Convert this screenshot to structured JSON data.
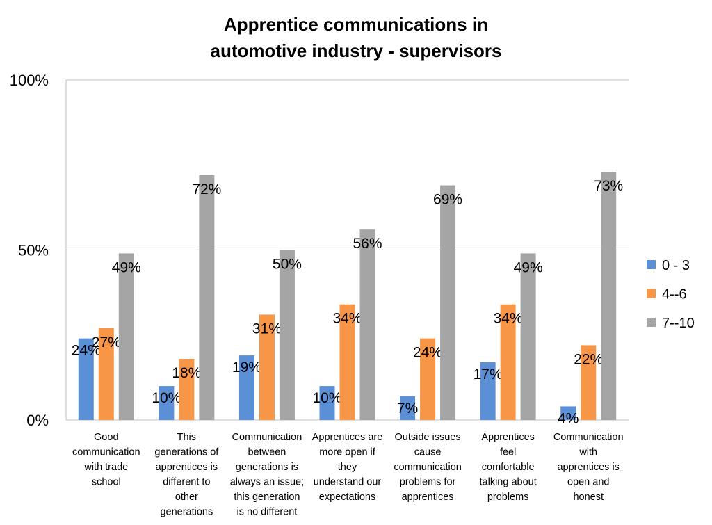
{
  "chart_data": {
    "type": "bar",
    "title_lines": [
      "Apprentice communications in",
      "automotive industry - supervisors"
    ],
    "categories": [
      [
        "Good",
        "communication",
        "with trade",
        "school"
      ],
      [
        "This",
        "generations of",
        "apprentices is",
        "different to",
        "other",
        "generations"
      ],
      [
        "Communication",
        "between",
        "generations is",
        "always an issue;",
        "this generation",
        "is no different"
      ],
      [
        "Apprentices are",
        "more open if",
        "they",
        "understand our",
        "expectations"
      ],
      [
        "Outside issues",
        "cause",
        "communication",
        "problems for",
        "apprentices"
      ],
      [
        "Apprentices",
        "feel",
        "comfortable",
        "talking about",
        "problems"
      ],
      [
        "Communication",
        "with",
        "apprentices is",
        "open and",
        "honest"
      ]
    ],
    "series": [
      {
        "name": "0 - 3",
        "color": "#5B8FD6",
        "values": [
          24,
          10,
          19,
          10,
          7,
          17,
          4
        ],
        "labels": [
          "24%",
          "10%",
          "19%",
          "10%",
          "7%",
          "17%",
          "4%"
        ]
      },
      {
        "name": "4--6",
        "color": "#F79646",
        "values": [
          27,
          18,
          31,
          34,
          24,
          34,
          22
        ],
        "labels": [
          "27%",
          "18%",
          "31%",
          "34%",
          "24%",
          "34%",
          "22%"
        ]
      },
      {
        "name": "7--10",
        "color": "#A5A5A5",
        "values": [
          49,
          72,
          50,
          56,
          69,
          49,
          73
        ],
        "labels": [
          "49%",
          "72%",
          "50%",
          "56%",
          "69%",
          "49%",
          "73%"
        ]
      }
    ],
    "yticks": [
      "0%",
      "50%",
      "100%"
    ],
    "ylim": [
      0,
      100
    ],
    "grid": true,
    "legend_position": "right"
  }
}
